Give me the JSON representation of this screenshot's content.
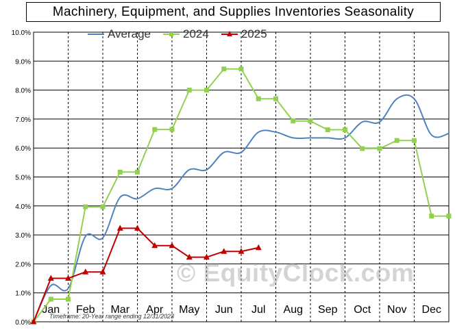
{
  "chart_data": {
    "type": "line",
    "title": "Machinery, Equipment, and Supplies Inventories Seasonality",
    "categories": [
      "Jan",
      "Feb",
      "Mar",
      "Apr",
      "May",
      "Jun",
      "Jul",
      "Aug",
      "Sep",
      "Oct",
      "Nov",
      "Dec"
    ],
    "ylim": [
      0,
      10
    ],
    "y_ticks": [
      "0.0%",
      "1.0%",
      "2.0%",
      "3.0%",
      "4.0%",
      "5.0%",
      "6.0%",
      "7.0%",
      "8.0%",
      "9.0%",
      "10.0%"
    ],
    "grid": true,
    "legend_position": "top",
    "series": [
      {
        "name": "Average",
        "color": "#4f81bd",
        "marker": "none",
        "x": [
          0,
          0.5,
          1.0,
          1.5,
          2.0,
          2.5,
          3.0,
          3.5,
          4.0,
          4.5,
          5.0,
          5.5,
          6.0,
          6.5,
          7.0,
          7.5,
          8.0,
          8.5,
          9.0,
          9.5,
          10.0,
          10.5,
          11.0,
          11.5,
          12.0
        ],
        "values": [
          0.0,
          1.25,
          1.15,
          2.95,
          2.9,
          4.3,
          4.25,
          4.6,
          4.6,
          5.25,
          5.25,
          5.85,
          5.85,
          6.55,
          6.55,
          6.35,
          6.35,
          6.35,
          6.35,
          6.9,
          6.9,
          7.7,
          7.7,
          6.45,
          6.5
        ]
      },
      {
        "name": "2024",
        "color": "#92d050",
        "marker": "square",
        "x": [
          0,
          0.5,
          1.0,
          1.5,
          2.0,
          2.5,
          3.0,
          3.5,
          4.0,
          4.5,
          5.0,
          5.5,
          6.0,
          6.5,
          7.0,
          7.5,
          8.0,
          8.5,
          9.0,
          9.5,
          10.0,
          10.5,
          11.0,
          11.5,
          12.0
        ],
        "values": [
          0.0,
          0.78,
          0.78,
          3.97,
          3.97,
          5.17,
          5.17,
          6.64,
          6.64,
          8.0,
          8.0,
          8.73,
          8.73,
          7.7,
          7.7,
          6.93,
          6.93,
          6.63,
          6.63,
          5.98,
          5.98,
          6.26,
          6.26,
          3.65,
          3.65
        ]
      },
      {
        "name": "2025",
        "color": "#c00000",
        "marker": "triangle",
        "x": [
          0,
          0.5,
          1.0,
          1.5,
          2.0,
          2.5,
          3.0,
          3.5,
          4.0,
          4.5,
          5.0,
          5.5,
          6.0,
          6.5
        ],
        "values": [
          0.0,
          1.5,
          1.5,
          1.72,
          1.72,
          3.23,
          3.23,
          2.63,
          2.63,
          2.23,
          2.23,
          2.43,
          2.43,
          2.56
        ]
      }
    ]
  },
  "annotations": {
    "timeframe": "Timeframe: 20-Year range ending 12/31/2023",
    "watermark": "© EquityClock.com"
  }
}
